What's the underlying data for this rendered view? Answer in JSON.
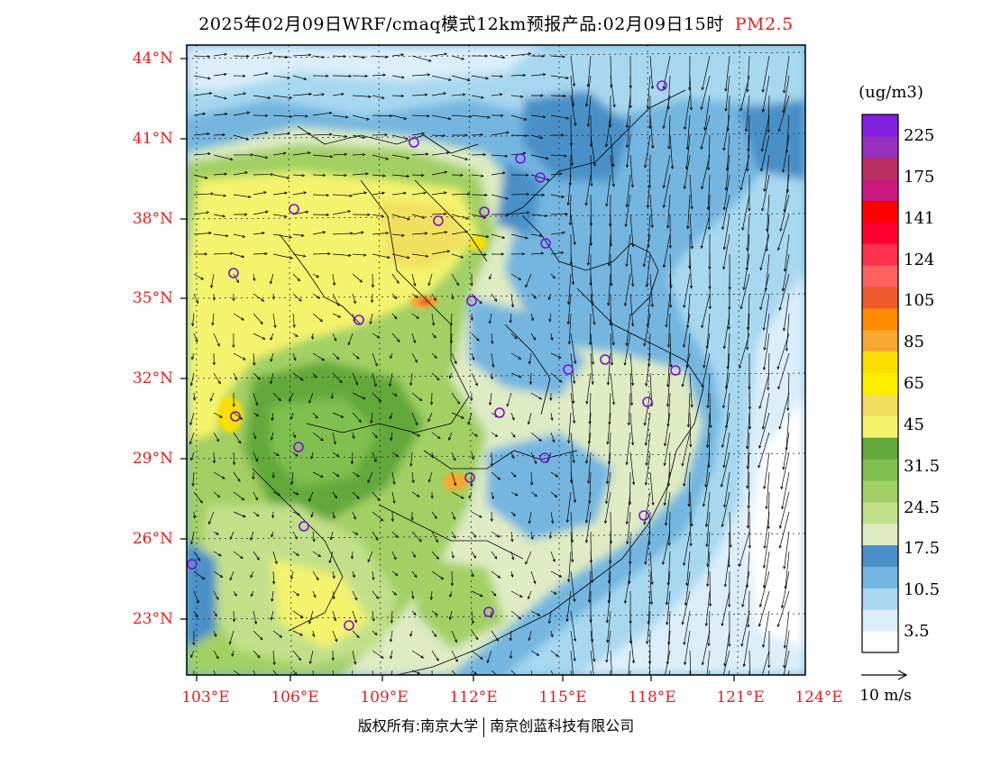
{
  "title": {
    "text": "2025年02月09日WRF/cmaq模式12km预报产品:02月09日15时",
    "pollutant": "PM2.5"
  },
  "map": {
    "lat_labels": [
      "44°N",
      "41°N",
      "38°N",
      "35°N",
      "32°N",
      "29°N",
      "26°N",
      "23°N"
    ],
    "lon_labels": [
      "103°E",
      "106°E",
      "109°E",
      "112°E",
      "115°E",
      "118°E",
      "121°E",
      "124°E"
    ],
    "lat_range": [
      21.0,
      44.5
    ],
    "lon_range": [
      102.7,
      124.0
    ]
  },
  "legend": {
    "unit": "(ug/m3)",
    "labels": [
      "225",
      "175",
      "141",
      "124",
      "105",
      "85",
      "65",
      "45",
      "31.5",
      "24.5",
      "17.5",
      "10.5",
      "3.5"
    ],
    "colors": [
      "#ffffff",
      "#dbeefa",
      "#a8d8f0",
      "#74b6e0",
      "#4a90c8",
      "#dfecc4",
      "#c2e08a",
      "#a2d064",
      "#80c050",
      "#62a83a",
      "#f4f46e",
      "#f2e060",
      "#ffee00",
      "#fae000",
      "#f6a830",
      "#ff8c00",
      "#ef5a2a",
      "#ff6060",
      "#ff3050",
      "#ff0030",
      "#ff0000",
      "#c81880",
      "#b83060",
      "#9830c0",
      "#8020e0"
    ]
  },
  "wind_reference": "10 m/s",
  "copyright": {
    "left": "版权所有:南京大学",
    "right": "南京创蓝科技有限公司"
  }
}
